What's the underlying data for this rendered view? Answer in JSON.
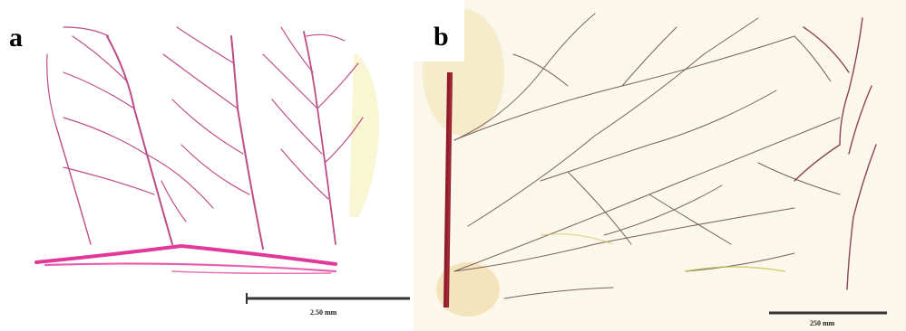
{
  "figure": {
    "panels": [
      {
        "label": "a",
        "scale_bar_text": "2.50 mm",
        "vein_color": "#b12a78",
        "midrib_color": "#e0399a"
      },
      {
        "label": "b",
        "scale_bar_text": "250 mm",
        "vein_color": "#6a3a3a",
        "midrib_color": "#8e1c2a"
      }
    ]
  }
}
